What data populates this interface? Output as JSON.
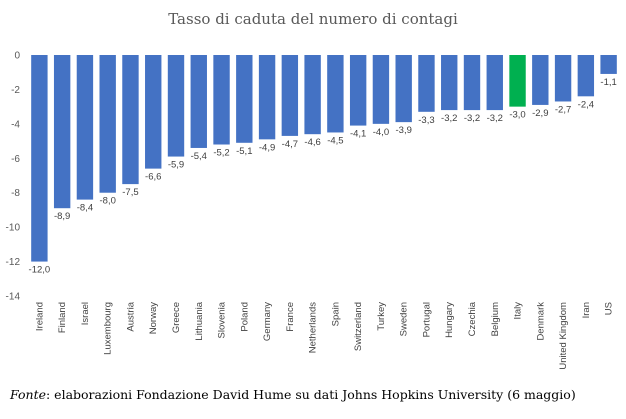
{
  "chart_data": {
    "type": "bar",
    "title": "Tasso di caduta del numero di contagi",
    "xlabel": "",
    "ylabel": "",
    "ylim": [
      -14,
      0
    ],
    "yticks": [
      0,
      -2,
      -4,
      -6,
      -8,
      -10,
      -12,
      -14
    ],
    "grid": false,
    "categories": [
      "Ireland",
      "Finland",
      "Israel",
      "Luxembourg",
      "Austria",
      "Norway",
      "Greece",
      "Lithuania",
      "Slovenia",
      "Poland",
      "Germany",
      "France",
      "Netherlands",
      "Spain",
      "Switzerland",
      "Turkey",
      "Sweden",
      "Portugal",
      "Hungary",
      "Czechia",
      "Belgium",
      "Italy",
      "Denmark",
      "United Kingdom",
      "Iran",
      "US"
    ],
    "values": [
      -12.0,
      -8.9,
      -8.4,
      -8.0,
      -7.5,
      -6.6,
      -5.9,
      -5.4,
      -5.2,
      -5.1,
      -4.9,
      -4.7,
      -4.6,
      -4.5,
      -4.1,
      -4.0,
      -3.9,
      -3.3,
      -3.2,
      -3.2,
      -3.2,
      -3.0,
      -2.9,
      -2.7,
      -2.4,
      -1.1
    ],
    "data_labels": [
      "-12,0",
      "-8,9",
      "-8,4",
      "-8,0",
      "-7,5",
      "-6,6",
      "-5,9",
      "-5,4",
      "-5,2",
      "-5,1",
      "-4,9",
      "-4,7",
      "-4,6",
      "-4,5",
      "-4,1",
      "-4,0",
      "-3,9",
      "-3,3",
      "-3,2",
      "-3,2",
      "-3,2",
      "-3,0",
      "-2,9",
      "-2,7",
      "-2,4",
      "-1,1"
    ],
    "colors": {
      "default": "#4472C4",
      "highlight": "#00B050"
    },
    "highlight_category": "Italy"
  },
  "source": {
    "prefix": "Fonte",
    "text": ": elaborazioni Fondazione David Hume su dati Johns Hopkins University (6 maggio)"
  }
}
